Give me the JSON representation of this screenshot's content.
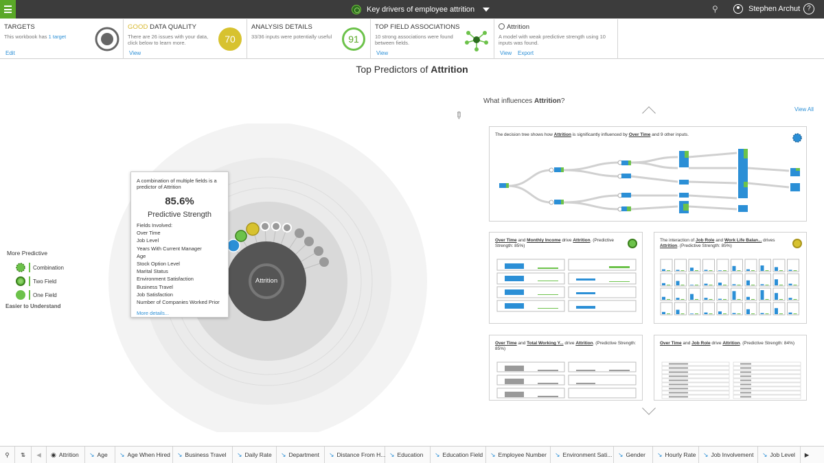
{
  "topbar": {
    "title": "Key drivers of employee attrition",
    "user": "Stephen Archut",
    "help": "?"
  },
  "cards": {
    "targets": {
      "title": "TARGETS",
      "desc_prefix": "This workbook has ",
      "desc_link": "1 target",
      "action": "Edit"
    },
    "quality": {
      "title_accent": "GOOD",
      "title_rest": " DATA QUALITY",
      "desc": "There are 26 issues with your data, click below to learn more.",
      "score": "70",
      "action": "View",
      "color": "#d7c22f"
    },
    "analysis": {
      "title": "ANALYSIS DETAILS",
      "desc": "33/36 inputs were potentially useful",
      "score": "91",
      "color": "#6cc24a"
    },
    "associations": {
      "title": "TOP FIELD ASSOCIATIONS",
      "desc": "10 strong associations were found between fields.",
      "action": "View"
    },
    "model": {
      "title": "Attrition",
      "desc": "A model with weak predictive strength using 10 inputs was found.",
      "action_view": "View",
      "action_export": "Export"
    }
  },
  "main": {
    "title_prefix": "Top Predictors of ",
    "title_bold": "Attrition",
    "center_label": "Attrition"
  },
  "legend": {
    "top": "More Predictive",
    "items": [
      "Combination",
      "Two Field",
      "One Field"
    ],
    "bottom": "Easier to Understand"
  },
  "tooltip": {
    "intro": "A combination of multiple fields is a predictor of Attrition",
    "pct": "85.6%",
    "strength_label": "Predictive Strength",
    "fields_label": "Fields Involved:",
    "fields": [
      "Over Time",
      "Job Level",
      "Years With Current Manager",
      "Age",
      "Stock Option Level",
      "Marital Status",
      "Environment Satisfaction",
      "Business Travel",
      "Job Satisfaction",
      "Number of Companies Worked Prior"
    ],
    "more": "More details..."
  },
  "right": {
    "heading_prefix": "What influences ",
    "heading_bold": "Attrition",
    "heading_suffix": "?",
    "view_all": "View All",
    "tree_text": {
      "t1": "The decision tree shows how ",
      "b1": "Attrition",
      "t2": " is significantly influenced by ",
      "b2": "Over Time",
      "t3": " and 9 other inputs."
    },
    "p1": {
      "b1": "Over Time",
      "t1": " and ",
      "b2": "Monthly Income",
      "t2": " drive ",
      "b3": "Attrition",
      "t3": ". (Predictive Strength: 85%)"
    },
    "p2": {
      "t0": "The interaction of ",
      "b1": "Job Role",
      "t1": " and ",
      "b2": "Work Life Balan...",
      "t2": " drives ",
      "b3": "Attrition",
      "t3": ". (Predictive Strength: 85%)"
    },
    "p3": {
      "b1": "Over Time",
      "t1": " and ",
      "b2": "Total Working Y...",
      "t2": " drive ",
      "b3": "Attrition",
      "t3": ". (Predictive Strength: 85%)"
    },
    "p4": {
      "b1": "Over Time",
      "t1": " and ",
      "b2": "Job Role",
      "t2": " drive ",
      "b3": "Attrition",
      "t3": ". (Predictive Strength: 84%)"
    }
  },
  "tabs": [
    "Attrition",
    "Age",
    "Age When Hired",
    "Business Travel",
    "Daily Rate",
    "Department",
    "Distance From H...",
    "Education",
    "Education Field",
    "Employee Number",
    "Environment Sati...",
    "Gender",
    "Hourly Rate",
    "Job Involvement",
    "Job Level"
  ],
  "colors": {
    "green": "#6cc24a",
    "blue": "#2b8fd6",
    "dark": "#3c3c3c"
  }
}
